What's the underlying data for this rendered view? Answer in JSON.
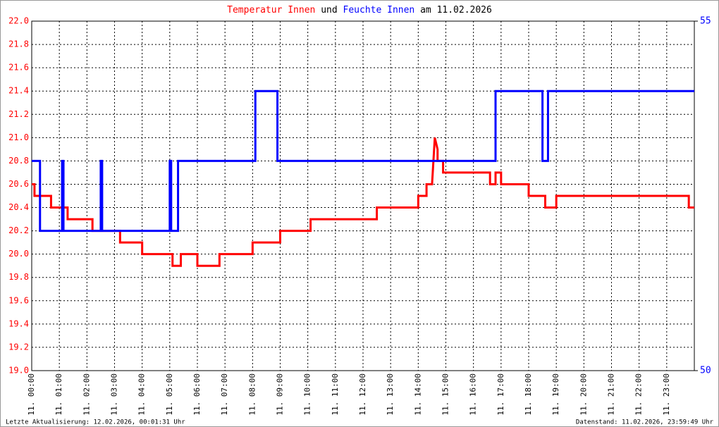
{
  "chart_data": {
    "type": "line",
    "title_parts": [
      "und",
      "am 11.02.2026"
    ],
    "footer_left": "Letzte Aktualisierung: 12.02.2026, 00:01:31 Uhr",
    "footer_right": "Datenstand: 11.02.2026, 23:59:49 Uhr",
    "xlim": [
      0,
      24
    ],
    "xticks": [
      {
        "value": 0,
        "label": "11. 00:00"
      },
      {
        "value": 1,
        "label": "11. 01:00"
      },
      {
        "value": 2,
        "label": "11. 02:00"
      },
      {
        "value": 3,
        "label": "11. 03:00"
      },
      {
        "value": 4,
        "label": "11. 04:00"
      },
      {
        "value": 5,
        "label": "11. 05:00"
      },
      {
        "value": 6,
        "label": "11. 06:00"
      },
      {
        "value": 7,
        "label": "11. 07:00"
      },
      {
        "value": 8,
        "label": "11. 08:00"
      },
      {
        "value": 9,
        "label": "11. 09:00"
      },
      {
        "value": 10,
        "label": "11. 10:00"
      },
      {
        "value": 11,
        "label": "11. 11:00"
      },
      {
        "value": 12,
        "label": "11. 12:00"
      },
      {
        "value": 13,
        "label": "11. 13:00"
      },
      {
        "value": 14,
        "label": "11. 14:00"
      },
      {
        "value": 15,
        "label": "11. 15:00"
      },
      {
        "value": 16,
        "label": "11. 16:00"
      },
      {
        "value": 17,
        "label": "11. 17:00"
      },
      {
        "value": 18,
        "label": "11. 18:00"
      },
      {
        "value": 19,
        "label": "11. 19:00"
      },
      {
        "value": 20,
        "label": "11. 20:00"
      },
      {
        "value": 21,
        "label": "11. 21:00"
      },
      {
        "value": 22,
        "label": "11. 22:00"
      },
      {
        "value": 23,
        "label": "11. 23:00"
      }
    ],
    "ylim": [
      19,
      22
    ],
    "yticks": [
      {
        "value": 19,
        "label": "19.0"
      },
      19.2,
      19.4,
      19.6,
      19.8,
      {
        "value": 20,
        "label": "20.0"
      },
      20.2,
      20.4,
      20.6,
      20.8,
      {
        "value": 21,
        "label": "21.0"
      },
      21.2,
      21.4,
      21.6,
      21.8,
      {
        "value": 22,
        "label": "22.0"
      }
    ],
    "y2lim": [
      50,
      55
    ],
    "y2ticks": [
      50,
      55
    ],
    "grid": true,
    "series": [
      {
        "name": "Temperatur Innen",
        "color": "#ff0000",
        "x": [
          0,
          0.1,
          0.1,
          0.7,
          0.7,
          1.3,
          1.3,
          2.2,
          2.2,
          3.2,
          3.2,
          4.0,
          4.0,
          5.1,
          5.1,
          5.4,
          5.4,
          6.0,
          6.0,
          6.8,
          6.8,
          8.0,
          8.0,
          9.0,
          9.0,
          10.1,
          10.1,
          12.5,
          12.5,
          14.0,
          14.0,
          14.3,
          14.3,
          14.5,
          14.6,
          14.7,
          14.7,
          14.9,
          14.9,
          16.6,
          16.6,
          16.8,
          16.8,
          17.0,
          17.0,
          18.0,
          18.0,
          18.6,
          18.6,
          19.0,
          19.0,
          23.8,
          23.8,
          24
        ],
        "values": [
          20.6,
          20.6,
          20.5,
          20.5,
          20.4,
          20.4,
          20.3,
          20.3,
          20.2,
          20.2,
          20.1,
          20.1,
          20.0,
          20.0,
          19.9,
          19.9,
          20.0,
          20.0,
          19.9,
          19.9,
          20.0,
          20.0,
          20.1,
          20.1,
          20.2,
          20.2,
          20.3,
          20.3,
          20.4,
          20.4,
          20.5,
          20.5,
          20.6,
          20.6,
          21.0,
          20.9,
          20.8,
          20.8,
          20.7,
          20.7,
          20.6,
          20.6,
          20.7,
          20.7,
          20.6,
          20.6,
          20.5,
          20.5,
          20.4,
          20.4,
          20.5,
          20.5,
          20.4,
          20.4
        ]
      },
      {
        "name": "Feuchte Innen",
        "color": "#0000ff",
        "axis": "y2",
        "x": [
          0,
          0.3,
          0.3,
          1.1,
          1.1,
          1.15,
          1.15,
          2.5,
          2.5,
          2.55,
          2.55,
          5.0,
          5.0,
          5.05,
          5.05,
          5.3,
          5.3,
          8.1,
          8.1,
          8.9,
          8.9,
          16.8,
          16.8,
          18.5,
          18.5,
          18.7,
          18.7,
          24
        ],
        "values": [
          53,
          53,
          52,
          52,
          53,
          53,
          52,
          52,
          53,
          53,
          52,
          52,
          53,
          53,
          52,
          52,
          53,
          53,
          54,
          54,
          53,
          53,
          54,
          54,
          53,
          53,
          54,
          54
        ]
      }
    ]
  }
}
